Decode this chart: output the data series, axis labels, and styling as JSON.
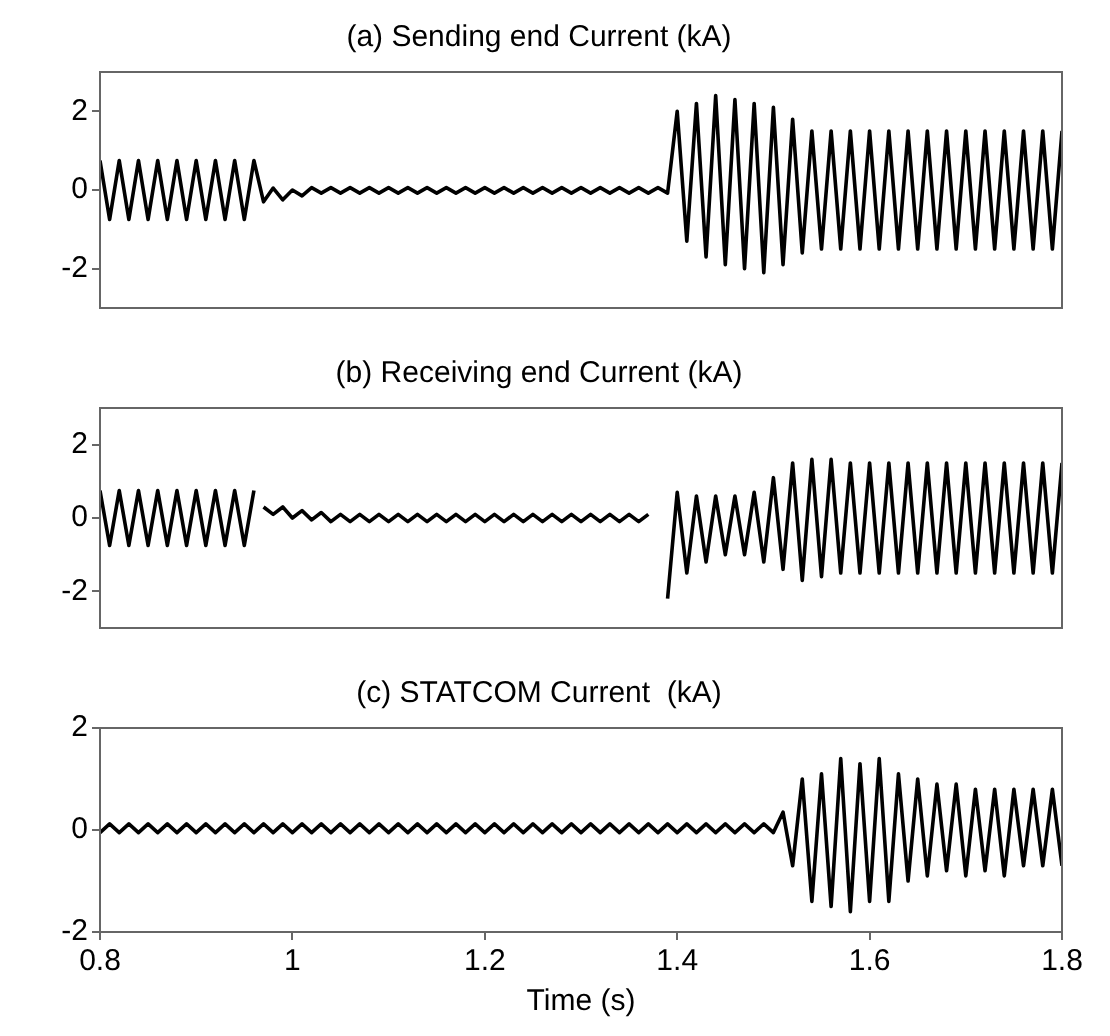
{
  "chart_data": [
    {
      "type": "line",
      "title": "(a) Sending end Current (kA)",
      "marker": "none",
      "line_style": "solid",
      "grid": false,
      "tick_labels": "y",
      "x": [
        0.8,
        0.81,
        0.82,
        0.83,
        0.84,
        0.85,
        0.86,
        0.87,
        0.88,
        0.89,
        0.9,
        0.91,
        0.92,
        0.93,
        0.94,
        0.95,
        0.96,
        0.97,
        0.98,
        0.99,
        1,
        1.01,
        1.02,
        1.03,
        1.04,
        1.05,
        1.06,
        1.07,
        1.08,
        1.09,
        1.1,
        1.11,
        1.12,
        1.13,
        1.14,
        1.15,
        1.16,
        1.17,
        1.18,
        1.19,
        1.2,
        1.21,
        1.22,
        1.23,
        1.24,
        1.25,
        1.26,
        1.27,
        1.28,
        1.29,
        1.3,
        1.31,
        1.32,
        1.33,
        1.34,
        1.35,
        1.36,
        1.37,
        1.38,
        1.39,
        1.4,
        1.41,
        1.42,
        1.43,
        1.44,
        1.45,
        1.46,
        1.47,
        1.48,
        1.49,
        1.5,
        1.51,
        1.52,
        1.53,
        1.54,
        1.55,
        1.56,
        1.57,
        1.58,
        1.59,
        1.6,
        1.61,
        1.62,
        1.63,
        1.64,
        1.65,
        1.66,
        1.67,
        1.68,
        1.69,
        1.7,
        1.71,
        1.72,
        1.73,
        1.74,
        1.75,
        1.76,
        1.77,
        1.78,
        1.79,
        1.8
      ],
      "xlim": [
        0.8,
        1.8
      ],
      "xticks": [
        0.8,
        1,
        1.2,
        1.4,
        1.6,
        1.8
      ],
      "ylim": [
        -3,
        3
      ],
      "yticks": [
        -2,
        0,
        2
      ],
      "series": [
        {
          "color": "#000000",
          "values": [
            0.75,
            -0.75,
            0.75,
            -0.75,
            0.75,
            -0.75,
            0.75,
            -0.75,
            0.75,
            -0.75,
            0.75,
            -0.75,
            0.75,
            -0.75,
            0.75,
            -0.75,
            0.75,
            -0.3,
            0.05,
            -0.25,
            0,
            -0.15,
            0.06,
            -0.08,
            0.06,
            -0.08,
            0.06,
            -0.08,
            0.06,
            -0.08,
            0.06,
            -0.08,
            0.06,
            -0.08,
            0.06,
            -0.08,
            0.06,
            -0.08,
            0.06,
            -0.08,
            0.06,
            -0.08,
            0.06,
            -0.08,
            0.06,
            -0.08,
            0.06,
            -0.08,
            0.06,
            -0.08,
            0.06,
            -0.08,
            0.06,
            -0.08,
            0.06,
            -0.08,
            0.06,
            -0.08,
            0.06,
            -0.08,
            2,
            -1.3,
            2.2,
            -1.7,
            2.4,
            -1.9,
            2.3,
            -2,
            2.2,
            -2.1,
            2.1,
            -1.9,
            1.8,
            -1.6,
            1.5,
            -1.5,
            1.5,
            -1.5,
            1.5,
            -1.5,
            1.5,
            -1.5,
            1.5,
            -1.5,
            1.5,
            -1.5,
            1.5,
            -1.5,
            1.5,
            -1.5,
            1.5,
            -1.5,
            1.5,
            -1.5,
            1.5,
            -1.5,
            1.5,
            -1.5,
            1.5,
            -1.5,
            1.5
          ]
        }
      ]
    },
    {
      "type": "line",
      "title": "(b) Receiving end Current (kA)",
      "marker": "none",
      "line_style": "solid",
      "grid": false,
      "tick_labels": "y",
      "x": [
        0.8,
        0.81,
        0.82,
        0.83,
        0.84,
        0.85,
        0.86,
        0.87,
        0.88,
        0.89,
        0.9,
        0.91,
        0.92,
        0.93,
        0.94,
        0.95,
        0.96,
        0.965,
        0.97,
        0.98,
        0.99,
        1,
        1.01,
        1.02,
        1.03,
        1.04,
        1.05,
        1.06,
        1.07,
        1.08,
        1.09,
        1.1,
        1.11,
        1.12,
        1.13,
        1.14,
        1.15,
        1.16,
        1.17,
        1.18,
        1.19,
        1.2,
        1.21,
        1.22,
        1.23,
        1.24,
        1.25,
        1.26,
        1.27,
        1.28,
        1.29,
        1.3,
        1.31,
        1.32,
        1.33,
        1.34,
        1.35,
        1.36,
        1.37,
        1.375,
        1.38,
        1.39,
        1.4,
        1.41,
        1.42,
        1.43,
        1.44,
        1.45,
        1.46,
        1.47,
        1.48,
        1.49,
        1.5,
        1.51,
        1.52,
        1.53,
        1.54,
        1.55,
        1.56,
        1.57,
        1.58,
        1.59,
        1.6,
        1.61,
        1.62,
        1.63,
        1.64,
        1.65,
        1.66,
        1.67,
        1.68,
        1.69,
        1.7,
        1.71,
        1.72,
        1.73,
        1.74,
        1.75,
        1.76,
        1.77,
        1.78,
        1.79,
        1.8
      ],
      "xlim": [
        0.8,
        1.8
      ],
      "xticks": [
        0.8,
        1,
        1.2,
        1.4,
        1.6,
        1.8
      ],
      "ylim": [
        -3,
        3
      ],
      "yticks": [
        -2,
        0,
        2
      ],
      "series": [
        {
          "color": "#000000",
          "values": [
            0.75,
            -0.75,
            0.75,
            -0.75,
            0.75,
            -0.75,
            0.75,
            -0.75,
            0.75,
            -0.75,
            0.75,
            -0.75,
            0.75,
            -0.75,
            0.75,
            -0.75,
            0.75,
            null,
            0.3,
            0.1,
            0.3,
            0,
            0.2,
            -0.05,
            0.15,
            -0.1,
            0.1,
            -0.1,
            0.1,
            -0.1,
            0.1,
            -0.1,
            0.1,
            -0.1,
            0.1,
            -0.1,
            0.1,
            -0.1,
            0.1,
            -0.1,
            0.1,
            -0.1,
            0.1,
            -0.1,
            0.1,
            -0.1,
            0.1,
            -0.1,
            0.1,
            -0.1,
            0.1,
            -0.1,
            0.1,
            -0.1,
            0.1,
            -0.1,
            0.1,
            -0.1,
            0.1,
            null,
            null,
            -2.2,
            0.7,
            -1.5,
            0.6,
            -1.2,
            0.6,
            -1,
            0.6,
            -1,
            0.7,
            -1.2,
            1.1,
            -1.4,
            1.5,
            -1.7,
            1.6,
            -1.6,
            1.6,
            -1.5,
            1.5,
            -1.5,
            1.5,
            -1.5,
            1.5,
            -1.5,
            1.5,
            -1.5,
            1.5,
            -1.5,
            1.5,
            -1.5,
            1.5,
            -1.5,
            1.5,
            -1.5,
            1.5,
            -1.5,
            1.5,
            -1.5,
            1.5,
            -1.5,
            1.5
          ]
        }
      ]
    },
    {
      "type": "line",
      "title": "(c) STATCOM Current  (kA)",
      "xlabel": "Time (s)",
      "marker": "none",
      "line_style": "solid",
      "grid": false,
      "x": [
        0.8,
        0.81,
        0.82,
        0.83,
        0.84,
        0.85,
        0.86,
        0.87,
        0.88,
        0.89,
        0.9,
        0.91,
        0.92,
        0.93,
        0.94,
        0.95,
        0.96,
        0.97,
        0.98,
        0.99,
        1,
        1.01,
        1.02,
        1.03,
        1.04,
        1.05,
        1.06,
        1.07,
        1.08,
        1.09,
        1.1,
        1.11,
        1.12,
        1.13,
        1.14,
        1.15,
        1.16,
        1.17,
        1.18,
        1.19,
        1.2,
        1.21,
        1.22,
        1.23,
        1.24,
        1.25,
        1.26,
        1.27,
        1.28,
        1.29,
        1.3,
        1.31,
        1.32,
        1.33,
        1.34,
        1.35,
        1.36,
        1.37,
        1.38,
        1.39,
        1.4,
        1.41,
        1.42,
        1.43,
        1.44,
        1.45,
        1.46,
        1.47,
        1.48,
        1.49,
        1.5,
        1.51,
        1.52,
        1.53,
        1.54,
        1.55,
        1.56,
        1.57,
        1.58,
        1.59,
        1.6,
        1.61,
        1.62,
        1.63,
        1.64,
        1.65,
        1.66,
        1.67,
        1.68,
        1.69,
        1.7,
        1.71,
        1.72,
        1.73,
        1.74,
        1.75,
        1.76,
        1.77,
        1.78,
        1.79,
        1.8
      ],
      "xlim": [
        0.8,
        1.8
      ],
      "xticks": [
        0.8,
        1,
        1.2,
        1.4,
        1.6,
        1.8
      ],
      "ylim": [
        -2,
        2
      ],
      "yticks": [
        -2,
        0,
        2
      ],
      "series": [
        {
          "color": "#000000",
          "values": [
            -0.05,
            0.12,
            -0.05,
            0.12,
            -0.05,
            0.12,
            -0.05,
            0.12,
            -0.05,
            0.12,
            -0.05,
            0.12,
            -0.05,
            0.12,
            -0.05,
            0.12,
            -0.05,
            0.12,
            -0.05,
            0.12,
            -0.05,
            0.12,
            -0.05,
            0.12,
            -0.05,
            0.12,
            -0.05,
            0.12,
            -0.05,
            0.12,
            -0.05,
            0.12,
            -0.05,
            0.12,
            -0.05,
            0.12,
            -0.05,
            0.12,
            -0.05,
            0.12,
            -0.05,
            0.12,
            -0.05,
            0.12,
            -0.05,
            0.12,
            -0.05,
            0.12,
            -0.05,
            0.12,
            -0.05,
            0.12,
            -0.05,
            0.12,
            -0.05,
            0.12,
            -0.05,
            0.12,
            -0.05,
            0.12,
            -0.05,
            0.12,
            -0.05,
            0.12,
            -0.05,
            0.12,
            -0.05,
            0.12,
            -0.05,
            0.12,
            -0.05,
            0.35,
            -0.7,
            1,
            -1.4,
            1.1,
            -1.5,
            1.4,
            -1.6,
            1.3,
            -1.4,
            1.4,
            -1.4,
            1.1,
            -1,
            1,
            -0.9,
            0.9,
            -0.8,
            0.9,
            -0.9,
            0.8,
            -0.8,
            0.8,
            -0.9,
            0.8,
            -0.7,
            0.8,
            -0.7,
            0.8,
            -0.7
          ]
        }
      ]
    }
  ]
}
